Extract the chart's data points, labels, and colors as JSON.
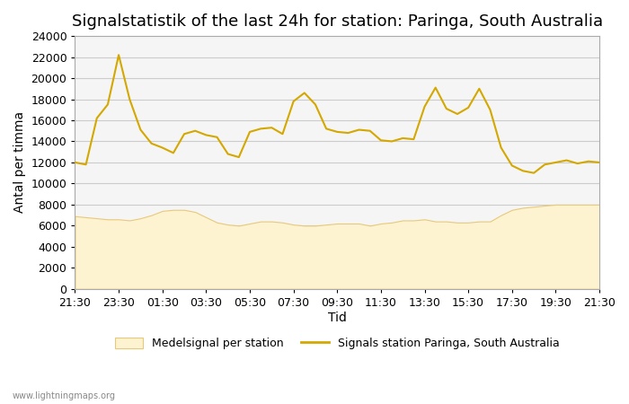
{
  "title": "Signalstatistik of the last 24h for station: Paringa, South Australia",
  "xlabel": "Tid",
  "ylabel": "Antal per timma",
  "watermark": "www.lightningmaps.org",
  "xtick_labels": [
    "21:30",
    "23:30",
    "01:30",
    "03:30",
    "05:30",
    "07:30",
    "09:30",
    "11:30",
    "13:30",
    "15:30",
    "17:30",
    "19:30",
    "21:30"
  ],
  "ylim": [
    0,
    24000
  ],
  "yticks": [
    0,
    2000,
    4000,
    6000,
    8000,
    10000,
    12000,
    14000,
    16000,
    18000,
    20000,
    22000,
    24000
  ],
  "legend_fill_label": "Medelsignal per station",
  "legend_line_label": "Signals station Paringa, South Australia",
  "fill_color": "#fdf3d0",
  "fill_edge_color": "#e8c97a",
  "line_color": "#d4a800",
  "background_color": "#ffffff",
  "plot_bg_color": "#f5f5f5",
  "grid_color": "#cccccc",
  "title_fontsize": 13,
  "axis_label_fontsize": 10,
  "tick_fontsize": 9,
  "signal_x": [
    0,
    0.5,
    1,
    1.5,
    2,
    2.5,
    3,
    3.5,
    4,
    4.5,
    5,
    5.5,
    6,
    6.5,
    7,
    7.5,
    8,
    8.5,
    9,
    9.5,
    10,
    10.5,
    11,
    11.5,
    12,
    12.5,
    13,
    13.5,
    14,
    14.5,
    15,
    15.5,
    16,
    16.5,
    17,
    17.5,
    18,
    18.5,
    19,
    19.5,
    20,
    20.5,
    21,
    21.5,
    22,
    22.5,
    23,
    23.5,
    24
  ],
  "signal_y": [
    12000,
    11800,
    16200,
    17500,
    22200,
    18000,
    15100,
    13800,
    13400,
    12900,
    14700,
    15000,
    14600,
    14400,
    12800,
    12500,
    14900,
    15200,
    15300,
    14700,
    17800,
    18600,
    17500,
    15200,
    14900,
    14800,
    15100,
    15000,
    14100,
    14000,
    14300,
    14200,
    17300,
    19100,
    17100,
    16600,
    17200,
    19000,
    17000,
    13400,
    11700,
    11200,
    11000,
    11800,
    12000,
    12200,
    11900,
    12100,
    12000
  ],
  "fill_x": [
    0,
    0.5,
    1,
    1.5,
    2,
    2.5,
    3,
    3.5,
    4,
    4.5,
    5,
    5.5,
    6,
    6.5,
    7,
    7.5,
    8,
    8.5,
    9,
    9.5,
    10,
    10.5,
    11,
    11.5,
    12,
    12.5,
    13,
    13.5,
    14,
    14.5,
    15,
    15.5,
    16,
    16.5,
    17,
    17.5,
    18,
    18.5,
    19,
    19.5,
    20,
    20.5,
    21,
    21.5,
    22,
    22.5,
    23,
    23.5,
    24
  ],
  "fill_y": [
    6900,
    6800,
    6700,
    6600,
    6600,
    6500,
    6700,
    7000,
    7400,
    7500,
    7500,
    7300,
    6800,
    6300,
    6100,
    6000,
    6200,
    6400,
    6400,
    6300,
    6100,
    6000,
    6000,
    6100,
    6200,
    6200,
    6200,
    6000,
    6200,
    6300,
    6500,
    6500,
    6600,
    6400,
    6400,
    6300,
    6300,
    6400,
    6400,
    7000,
    7500,
    7700,
    7800,
    7900,
    8000,
    8000,
    8000,
    8000,
    8000
  ]
}
